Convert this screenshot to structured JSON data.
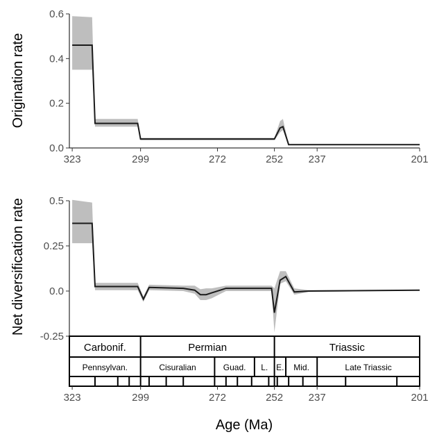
{
  "chart_data": [
    {
      "type": "line",
      "ylabel": "Origination rate",
      "xlabel": "",
      "x_axis": "Age (Ma), reversed",
      "xlim": [
        324,
        201
      ],
      "ylim": [
        0,
        0.6
      ],
      "yticks": [
        "0.0",
        "0.2",
        "0.4",
        "0.6"
      ],
      "xticks": [
        "323",
        "299",
        "272",
        "252",
        "237",
        "201"
      ],
      "grid": false,
      "series": [
        {
          "x": [
            323,
            316,
            315,
            307,
            306,
            300,
            299,
            256,
            252,
            250,
            249,
            247,
            237,
            201
          ],
          "y": [
            0.46,
            0.46,
            0.11,
            0.11,
            0.11,
            0.11,
            0.04,
            0.04,
            0.04,
            0.09,
            0.095,
            0.015,
            0.015,
            0.015
          ],
          "lower": [
            0.35,
            0.35,
            0.095,
            0.095,
            0.095,
            0.095,
            0.035,
            0.035,
            0.035,
            0.07,
            0.08,
            0.013,
            0.013,
            0.013
          ],
          "upper": [
            0.59,
            0.585,
            0.13,
            0.13,
            0.13,
            0.13,
            0.045,
            0.045,
            0.045,
            0.12,
            0.13,
            0.017,
            0.017,
            0.017
          ]
        }
      ]
    },
    {
      "type": "line",
      "ylabel": "Net diversification rate",
      "xlabel": "Age (Ma)",
      "x_axis": "Age (Ma), reversed",
      "xlim": [
        324,
        201
      ],
      "ylim": [
        -0.25,
        0.5
      ],
      "yticks": [
        "-0.25",
        "0.0",
        "0.25",
        "0.5"
      ],
      "xticks": [
        "323",
        "299",
        "272",
        "252",
        "237",
        "201"
      ],
      "grid": false,
      "series": [
        {
          "x": [
            323,
            316,
            315,
            300,
            298,
            296,
            284,
            280,
            278,
            276,
            274,
            269,
            256,
            253,
            252,
            250,
            248,
            245,
            240,
            201
          ],
          "y": [
            0.375,
            0.375,
            0.025,
            0.025,
            -0.045,
            0.02,
            0.015,
            0.005,
            -0.02,
            -0.02,
            -0.01,
            0.015,
            0.015,
            0.015,
            -0.12,
            0.06,
            0.08,
            -0.005,
            0.0,
            0.005
          ],
          "lower": [
            0.265,
            0.265,
            0.005,
            0.005,
            -0.06,
            0.005,
            0.0,
            -0.015,
            -0.05,
            -0.05,
            -0.04,
            0.0,
            0.0,
            0.0,
            -0.23,
            0.04,
            0.055,
            -0.02,
            -0.005,
            0.003
          ],
          "upper": [
            0.505,
            0.49,
            0.045,
            0.045,
            -0.03,
            0.035,
            0.03,
            0.03,
            0.01,
            0.015,
            0.015,
            0.03,
            0.03,
            0.03,
            0.015,
            0.11,
            0.11,
            0.015,
            0.005,
            0.007
          ]
        }
      ]
    }
  ],
  "timescale": {
    "periods": [
      {
        "label": "Carbonif.",
        "from": 324,
        "to": 299
      },
      {
        "label": "Permian",
        "from": 299,
        "to": 252
      },
      {
        "label": "Triassic",
        "from": 252,
        "to": 201
      }
    ],
    "epochs": [
      {
        "label": "Pennsylvan.",
        "from": 324,
        "to": 299
      },
      {
        "label": "Cisuralian",
        "from": 299,
        "to": 273
      },
      {
        "label": "Guad.",
        "from": 273,
        "to": 259
      },
      {
        "label": "L.",
        "from": 259,
        "to": 252
      },
      {
        "label": "E.",
        "from": 252,
        "to": 248
      },
      {
        "label": "Mid.",
        "from": 248,
        "to": 237
      },
      {
        "label": "Late Triassic",
        "from": 237,
        "to": 201
      }
    ],
    "stage_boundaries": [
      315,
      307,
      303,
      299,
      296,
      290,
      284,
      273,
      269,
      265,
      260,
      254,
      252,
      251,
      247,
      242,
      237,
      227,
      209,
      201
    ]
  }
}
